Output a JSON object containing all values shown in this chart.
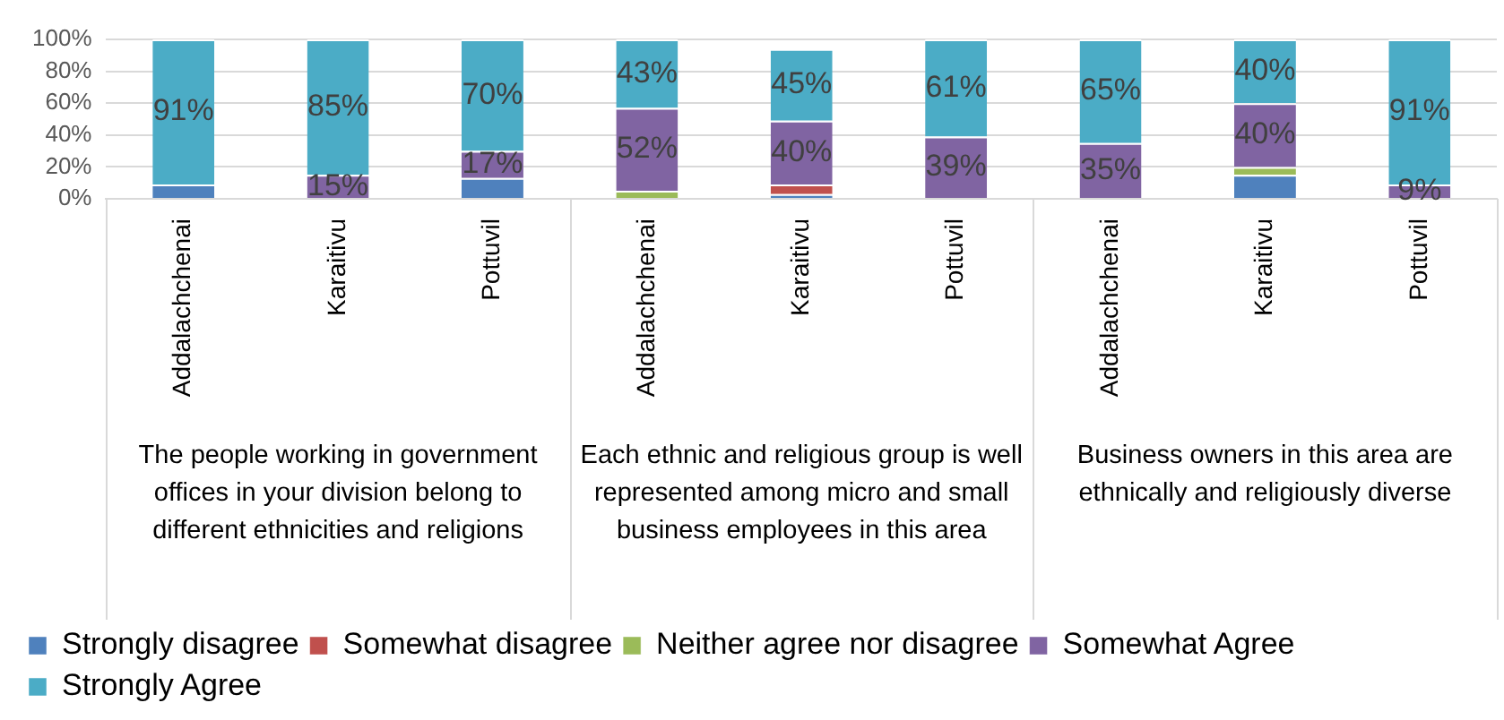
{
  "chart_data": {
    "type": "bar",
    "stacked": true,
    "categories": [
      "Addalachchenai",
      "Karaitivu",
      "Pottuvil",
      "Addalachchenai",
      "Karaitivu",
      "Pottuvil",
      "Addalachchenai",
      "Karaitivu",
      "Pottuvil"
    ],
    "series": [
      {
        "name": "Strongly disagree",
        "color": "#4f81bd",
        "values": [
          9,
          0,
          13,
          0,
          3,
          0,
          0,
          15,
          0
        ],
        "value_labels": [
          null,
          null,
          null,
          null,
          null,
          null,
          null,
          null,
          null
        ]
      },
      {
        "name": "Somewhat disagree",
        "color": "#c0504d",
        "values": [
          0,
          0,
          0,
          0,
          6,
          0,
          0,
          0,
          0
        ],
        "value_labels": [
          null,
          null,
          null,
          null,
          null,
          null,
          null,
          null,
          null
        ]
      },
      {
        "name": "Neither agree nor disagree",
        "color": "#9bbb59",
        "values": [
          0,
          0,
          0,
          5,
          0,
          0,
          0,
          5,
          0
        ],
        "value_labels": [
          null,
          null,
          null,
          null,
          null,
          null,
          null,
          null,
          null
        ]
      },
      {
        "name": "Somewhat Agree",
        "color": "#8064a2",
        "values": [
          0,
          15,
          17,
          52,
          40,
          39,
          35,
          40,
          9
        ],
        "value_labels": [
          null,
          "15%",
          "17%",
          "52%",
          "40%",
          "39%",
          "35%",
          "40%",
          "9%"
        ]
      },
      {
        "name": "Strongly Agree",
        "color": "#4bacc6",
        "values": [
          91,
          85,
          70,
          43,
          45,
          61,
          65,
          40,
          91
        ],
        "value_labels": [
          "91%",
          "85%",
          "70%",
          "43%",
          "45%",
          "61%",
          "65%",
          "40%",
          "91%"
        ]
      }
    ],
    "ylim": [
      0,
      100
    ],
    "yticks": [
      {
        "value": 0,
        "label": "0%"
      },
      {
        "value": 20,
        "label": "20%"
      },
      {
        "value": 40,
        "label": "40%"
      },
      {
        "value": 60,
        "label": "60%"
      },
      {
        "value": 80,
        "label": "80%"
      },
      {
        "value": 100,
        "label": "100%"
      }
    ],
    "grid": "y",
    "legend": "bottom",
    "annotations": [
      "The people working in government offices in your division belong to different ethnicities and religions",
      "Each ethnic and religious group is well represented among micro and small business employees in this area",
      "Business owners in this area are ethnically and religiously diverse"
    ]
  }
}
